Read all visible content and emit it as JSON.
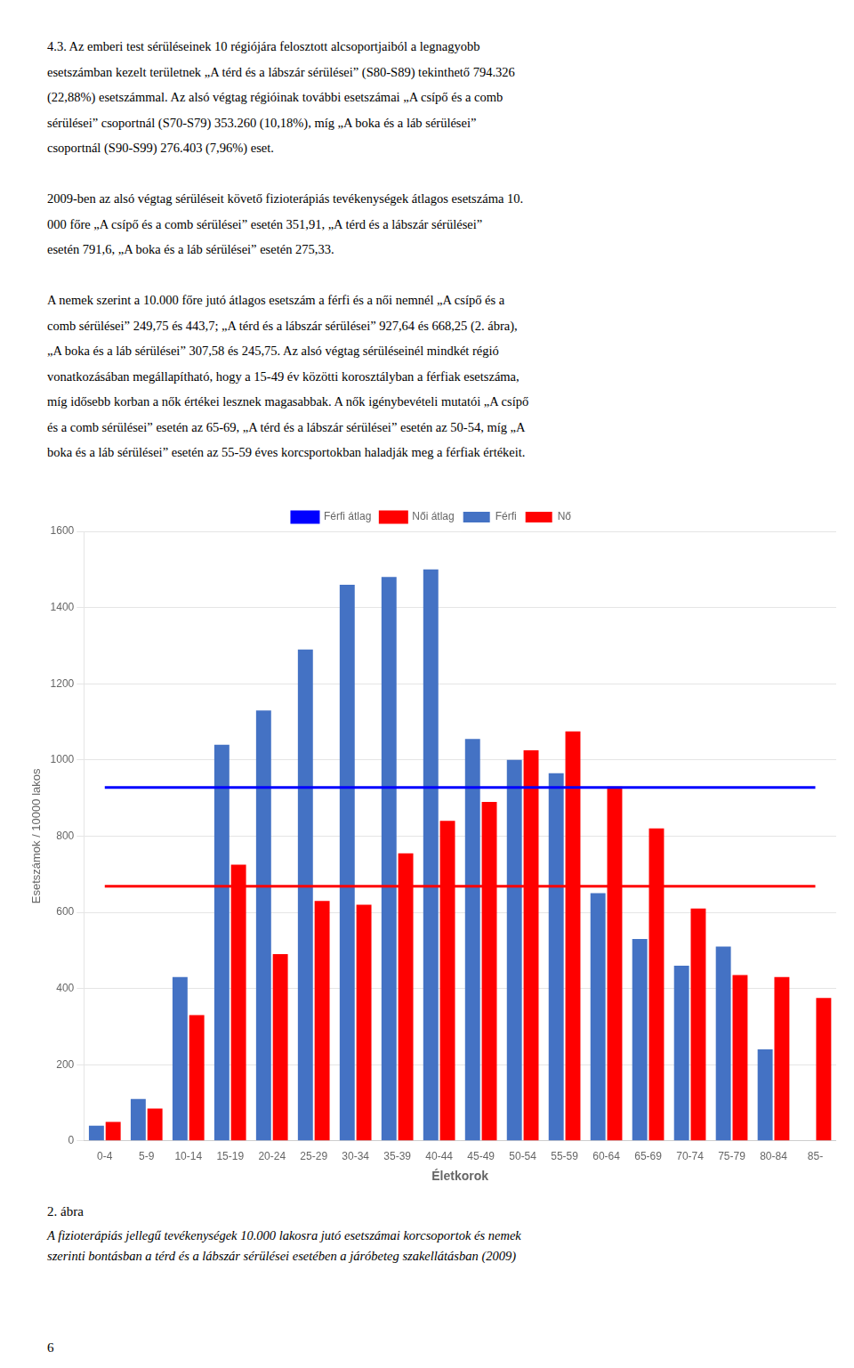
{
  "chart_data": {
    "type": "bar",
    "title": "2. ábra",
    "subtitle": [
      "A fizioterápiás jellegű tevékenységek 10.000 lakosra jutó esetszámai korcsoportok és nemek",
      "szerinti bontásban a térd és a lábszár sérülései esetében a járóbeteg szakellátásban (2009)"
    ],
    "annotations": [
      [
        "4.3.  Az emberi test sérüléseinek 10 régiójára felosztott alcsoportjaiból a legnagyobb",
        "esetszámban kezelt területnek „A térd és a lábszár sérülései” (S80-S89) tekinthető 794.326",
        "(22,88%) esetszámmal. Az alsó végtag régióinak további esetszámai „A csípő és a comb",
        "sérülései” csoportnál (S70-S79) 353.260 (10,18%), míg „A boka és a láb sérülései”",
        "csoportnál (S90-S99) 276.403 (7,96%) eset."
      ],
      [
        "2009-ben az alsó végtag sérüléseit követő fizioterápiás tevékenységek átlagos esetszáma 10.",
        "000 főre „A csípő és a comb sérülései” esetén 351,91, „A térd és a lábszár sérülései”",
        "esetén 791,6, „A boka és a láb sérülései” esetén 275,33."
      ],
      [
        "A nemek szerint a 10.000 főre jutó átlagos esetszám a férfi és a női nemnél „A csípő és a",
        "comb sérülései” 249,75 és 443,7; „A térd és a lábszár sérülései” 927,64 és 668,25 (2. ábra),",
        "„A boka és a láb sérülései” 307,58 és 245,75. Az alsó végtag sérüléseinél mindkét régió",
        "vonatkozásában megállapítható, hogy a 15-49 év közötti korosztályban a férfiak esetszáma,",
        "míg idősebb korban a nők értékei lesznek magasabbak. A nők igénybevételi mutatói „A csípő",
        "és a comb sérülései” esetén az 65-69, „A térd és a lábszár sérülései” esetén az 50-54, míg „A",
        "boka és a láb sérülései” esetén az 55-59 éves korcsportokban haladják meg a férfiak értékeit."
      ],
      [
        "6"
      ]
    ],
    "xlabel": "Életkorok",
    "ylabel": "Esetszámok / 10000 lakos",
    "categories": [
      "0-4",
      "5-9",
      "10-14",
      "15-19",
      "20-24",
      "25-29",
      "30-34",
      "35-39",
      "40-44",
      "45-49",
      "50-54",
      "55-59",
      "60-64",
      "65-69",
      "70-74",
      "75-79",
      "80-84",
      "85-"
    ],
    "series": [
      {
        "name": "Férfi",
        "color": "#4472C4",
        "values": [
          40,
          110,
          430,
          1040,
          1130,
          1290,
          1460,
          1480,
          1500,
          1055,
          1000,
          965,
          650,
          530,
          460,
          510,
          240,
          0
        ]
      },
      {
        "name": "Nő",
        "color": "#FF0000",
        "values": [
          50,
          85,
          330,
          725,
          490,
          630,
          620,
          755,
          840,
          890,
          1025,
          1075,
          930,
          820,
          610,
          435,
          430,
          375
        ]
      },
      {
        "name": "Férfi átlag",
        "type": "line",
        "color": "#0000FF",
        "values": [
          927.64,
          927.64,
          927.64,
          927.64,
          927.64,
          927.64,
          927.64,
          927.64,
          927.64,
          927.64,
          927.64,
          927.64,
          927.64,
          927.64,
          927.64,
          927.64,
          927.64,
          927.64
        ]
      },
      {
        "name": "Női átlag",
        "type": "line",
        "color": "#FF0000",
        "values": [
          668.25,
          668.25,
          668.25,
          668.25,
          668.25,
          668.25,
          668.25,
          668.25,
          668.25,
          668.25,
          668.25,
          668.25,
          668.25,
          668.25,
          668.25,
          668.25,
          668.25,
          668.25
        ]
      }
    ],
    "ylim": [
      0,
      1600
    ],
    "yticks": [
      0,
      200,
      400,
      600,
      800,
      1000,
      1200,
      1400,
      1600
    ],
    "grid": "y",
    "legend": "top"
  }
}
